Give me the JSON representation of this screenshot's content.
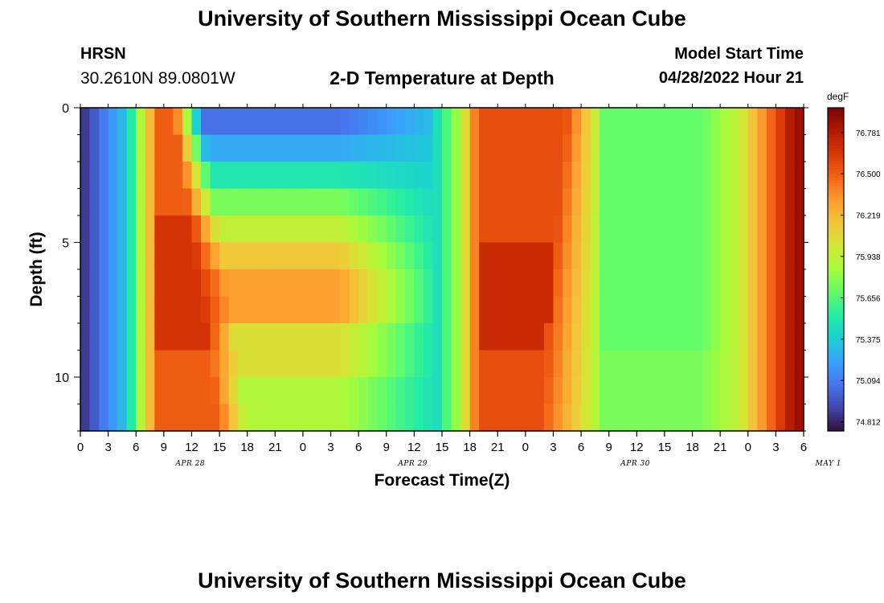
{
  "page": {
    "title_top": "University of Southern Mississippi Ocean Cube",
    "title_bottom": "University of Southern Mississippi Ocean Cube",
    "station": "HRSN",
    "coordinates": "30.2610N  89.0801W",
    "chart_title": "2-D Temperature at Depth",
    "model_start_label": "Model Start Time",
    "model_start_time": "04/28/2022 Hour 21"
  },
  "chart_data": {
    "type": "heatmap",
    "title": "2-D Temperature at Depth",
    "xlabel": "Forecast Time(Z)",
    "ylabel": "Depth (ft)",
    "x_ticks": [
      "0",
      "3",
      "6",
      "9",
      "12",
      "15",
      "18",
      "21",
      "0",
      "3",
      "6",
      "9",
      "12",
      "15",
      "18",
      "21",
      "0",
      "3",
      "6",
      "9",
      "12",
      "15",
      "18",
      "21",
      "0",
      "3",
      "6"
    ],
    "date_labels": [
      {
        "label": "APR 28",
        "hour": 12
      },
      {
        "label": "APR 29",
        "hour": 36
      },
      {
        "label": "APR 30",
        "hour": 60
      },
      {
        "label": "MAY 1",
        "hour": 81
      }
    ],
    "x_range_hours": [
      0,
      78
    ],
    "y_ticks": [
      "0",
      "5",
      "10"
    ],
    "y_range_ft": [
      0,
      12
    ],
    "colorbar_unit": "degF",
    "colorbar_ticks": [
      "76.781",
      "76.500",
      "76.219",
      "75.938",
      "75.656",
      "75.375",
      "75.094",
      "74.812"
    ],
    "colorbar_range": [
      74.75,
      76.95
    ],
    "colorscale": [
      "#30123b",
      "#4145ab",
      "#4675ed",
      "#39a2fc",
      "#1bcfd4",
      "#24eca6",
      "#61fc6c",
      "#a4fc3b",
      "#d1e834",
      "#f3c63a",
      "#fe9b2d",
      "#f36315",
      "#d93806",
      "#b11901",
      "#7a0403"
    ],
    "n_depth_levels": 12,
    "n_time_steps": 78,
    "description_of_field": "Cool surface layer at hours 0-6, warm pulse hours 7-14 spreading with depth, cool shallow layer hours 15-25 over warm mid-depth layer, cold front near hour 41-44, warm block hours 44-53, cool plateau hours 55-69, warming after hour 72"
  }
}
